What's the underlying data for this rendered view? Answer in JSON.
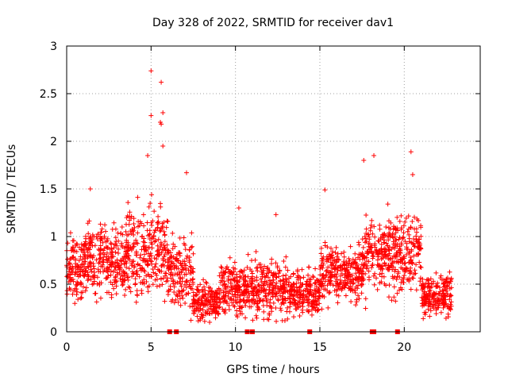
{
  "chart_data": {
    "type": "scatter",
    "title": "Day 328 of 2022, SRMTID for receiver dav1",
    "xlabel": "GPS time / hours",
    "ylabel": "SRMTID / TECUs",
    "xlim": [
      0,
      24.5
    ],
    "ylim": [
      0,
      3
    ],
    "xticks": [
      0,
      5,
      10,
      15,
      20
    ],
    "xtick_labels": [
      "0",
      "5",
      "10",
      "15",
      "20"
    ],
    "yticks": [
      0,
      0.5,
      1,
      1.5,
      2,
      2.5,
      3
    ],
    "ytick_labels": [
      "0",
      "0.5",
      "1",
      "1.5",
      "2",
      "2.5",
      "3"
    ],
    "grid": true,
    "marker": "plus",
    "color": "#ff0000",
    "series_name": "SRMTID",
    "notable_points": [
      {
        "x": 5.0,
        "y": 2.74
      },
      {
        "x": 5.6,
        "y": 2.62
      },
      {
        "x": 5.7,
        "y": 2.3
      },
      {
        "x": 5.0,
        "y": 2.27
      },
      {
        "x": 5.55,
        "y": 2.2
      },
      {
        "x": 5.6,
        "y": 2.18
      },
      {
        "x": 5.7,
        "y": 1.95
      },
      {
        "x": 18.2,
        "y": 1.85
      },
      {
        "x": 20.4,
        "y": 1.89
      },
      {
        "x": 4.8,
        "y": 1.85
      },
      {
        "x": 17.6,
        "y": 1.8
      },
      {
        "x": 7.1,
        "y": 1.67
      },
      {
        "x": 20.5,
        "y": 1.65
      },
      {
        "x": 15.3,
        "y": 1.49
      },
      {
        "x": 1.4,
        "y": 1.5
      },
      {
        "x": 10.2,
        "y": 1.3
      },
      {
        "x": 12.4,
        "y": 1.23
      }
    ],
    "zero_points_x": [
      6.1,
      6.5,
      10.7,
      11.0,
      14.4,
      18.1,
      18.2,
      19.6
    ],
    "density_profile": [
      {
        "x_start": 0.0,
        "x_end": 1.0,
        "y_center": 0.65,
        "y_spread": 0.3
      },
      {
        "x_start": 1.0,
        "x_end": 3.5,
        "y_center": 0.75,
        "y_spread": 0.3
      },
      {
        "x_start": 3.5,
        "x_end": 6.0,
        "y_center": 0.85,
        "y_spread": 0.4
      },
      {
        "x_start": 6.0,
        "x_end": 7.5,
        "y_center": 0.6,
        "y_spread": 0.3
      },
      {
        "x_start": 7.5,
        "x_end": 9.0,
        "y_center": 0.3,
        "y_spread": 0.15
      },
      {
        "x_start": 9.0,
        "x_end": 11.0,
        "y_center": 0.45,
        "y_spread": 0.25
      },
      {
        "x_start": 11.0,
        "x_end": 13.0,
        "y_center": 0.45,
        "y_spread": 0.25
      },
      {
        "x_start": 13.0,
        "x_end": 15.0,
        "y_center": 0.4,
        "y_spread": 0.2
      },
      {
        "x_start": 15.0,
        "x_end": 17.5,
        "y_center": 0.6,
        "y_spread": 0.25
      },
      {
        "x_start": 17.5,
        "x_end": 21.0,
        "y_center": 0.8,
        "y_spread": 0.35
      },
      {
        "x_start": 21.0,
        "x_end": 22.8,
        "y_center": 0.4,
        "y_spread": 0.2
      }
    ]
  }
}
